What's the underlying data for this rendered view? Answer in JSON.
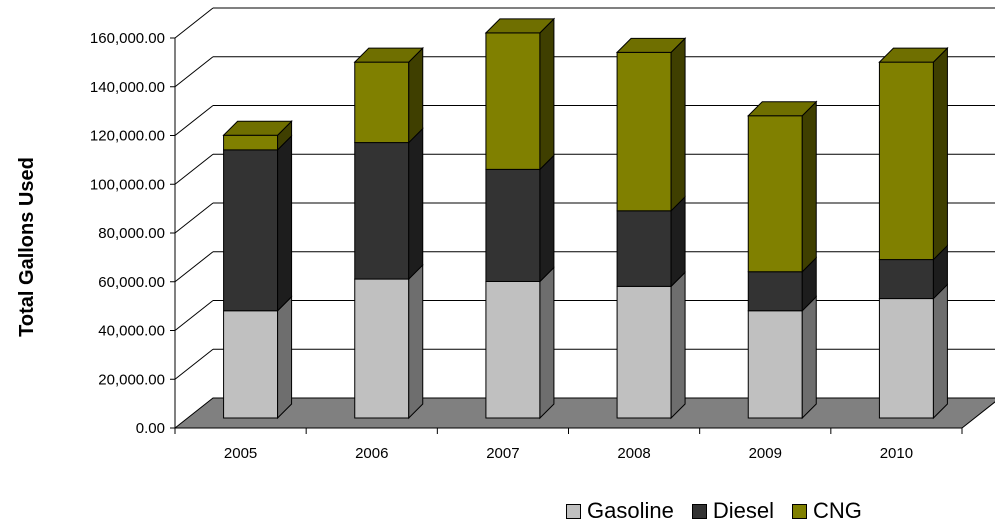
{
  "chart_data": {
    "type": "bar",
    "stacked": true,
    "three_d": true,
    "categories": [
      "2005",
      "2006",
      "2007",
      "2008",
      "2009",
      "2010"
    ],
    "series": [
      {
        "name": "Gasoline",
        "color": "#c0c0c0",
        "side_color": "#6e6e6e",
        "top_color": "#dcdcdc",
        "values": [
          44000,
          57000,
          56000,
          54000,
          44000,
          49000
        ]
      },
      {
        "name": "Diesel",
        "color": "#333333",
        "side_color": "#1d1d1d",
        "top_color": "#4a4a4a",
        "values": [
          66000,
          56000,
          46000,
          31000,
          16000,
          16000
        ]
      },
      {
        "name": "CNG",
        "color": "#808000",
        "side_color": "#3f3f00",
        "top_color": "#6f6f00",
        "values": [
          6000,
          33000,
          56000,
          65000,
          64000,
          81000
        ]
      }
    ],
    "xlabel": "",
    "ylabel": "Total Gallons Used",
    "ylim": [
      0,
      160000
    ],
    "yticks": [
      "0.00",
      "20,000.00",
      "40,000.00",
      "60,000.00",
      "80,000.00",
      "100,000.00",
      "120,000.00",
      "140,000.00",
      "160,000.00"
    ],
    "grid": true,
    "floor_color": "#808080",
    "legend_position": "bottom-right"
  }
}
